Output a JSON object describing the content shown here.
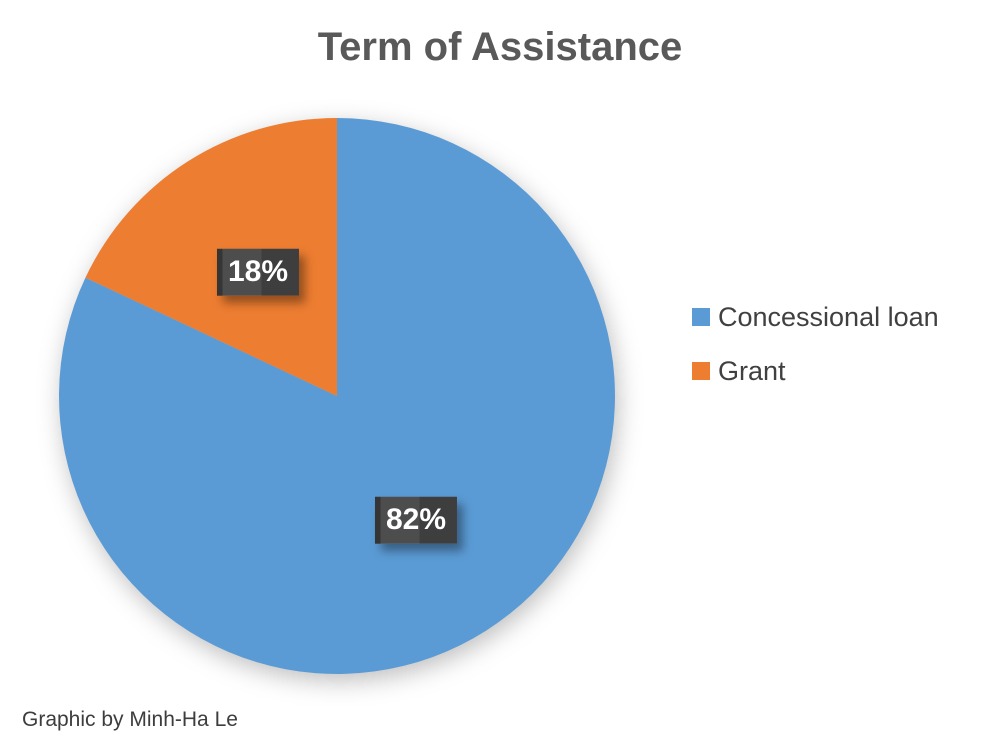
{
  "title": {
    "text": "Term of Assistance",
    "color": "#595959"
  },
  "chart_data": {
    "type": "pie",
    "title": "Term of Assistance",
    "categories": [
      "Concessional loan",
      "Grant"
    ],
    "values": [
      82,
      18
    ],
    "unit": "%",
    "slices": [
      {
        "category": "Concessional loan",
        "value": 82,
        "label": "82%",
        "color": "#5B9BD5"
      },
      {
        "category": "Grant",
        "value": 18,
        "label": "18%",
        "color": "#ED7D31"
      }
    ],
    "start_angle_deg": 0,
    "direction": "clockwise",
    "legend_position": "right",
    "data_label_style": {
      "background": "#454545",
      "text_color": "#FFFFFF",
      "bold": true
    }
  },
  "legend": {
    "items": [
      {
        "label": "Concessional loan",
        "color": "#5B9BD5"
      },
      {
        "label": "Grant",
        "color": "#ED7D31"
      }
    ]
  },
  "credit": {
    "text": "Graphic by Minh-Ha Le"
  }
}
